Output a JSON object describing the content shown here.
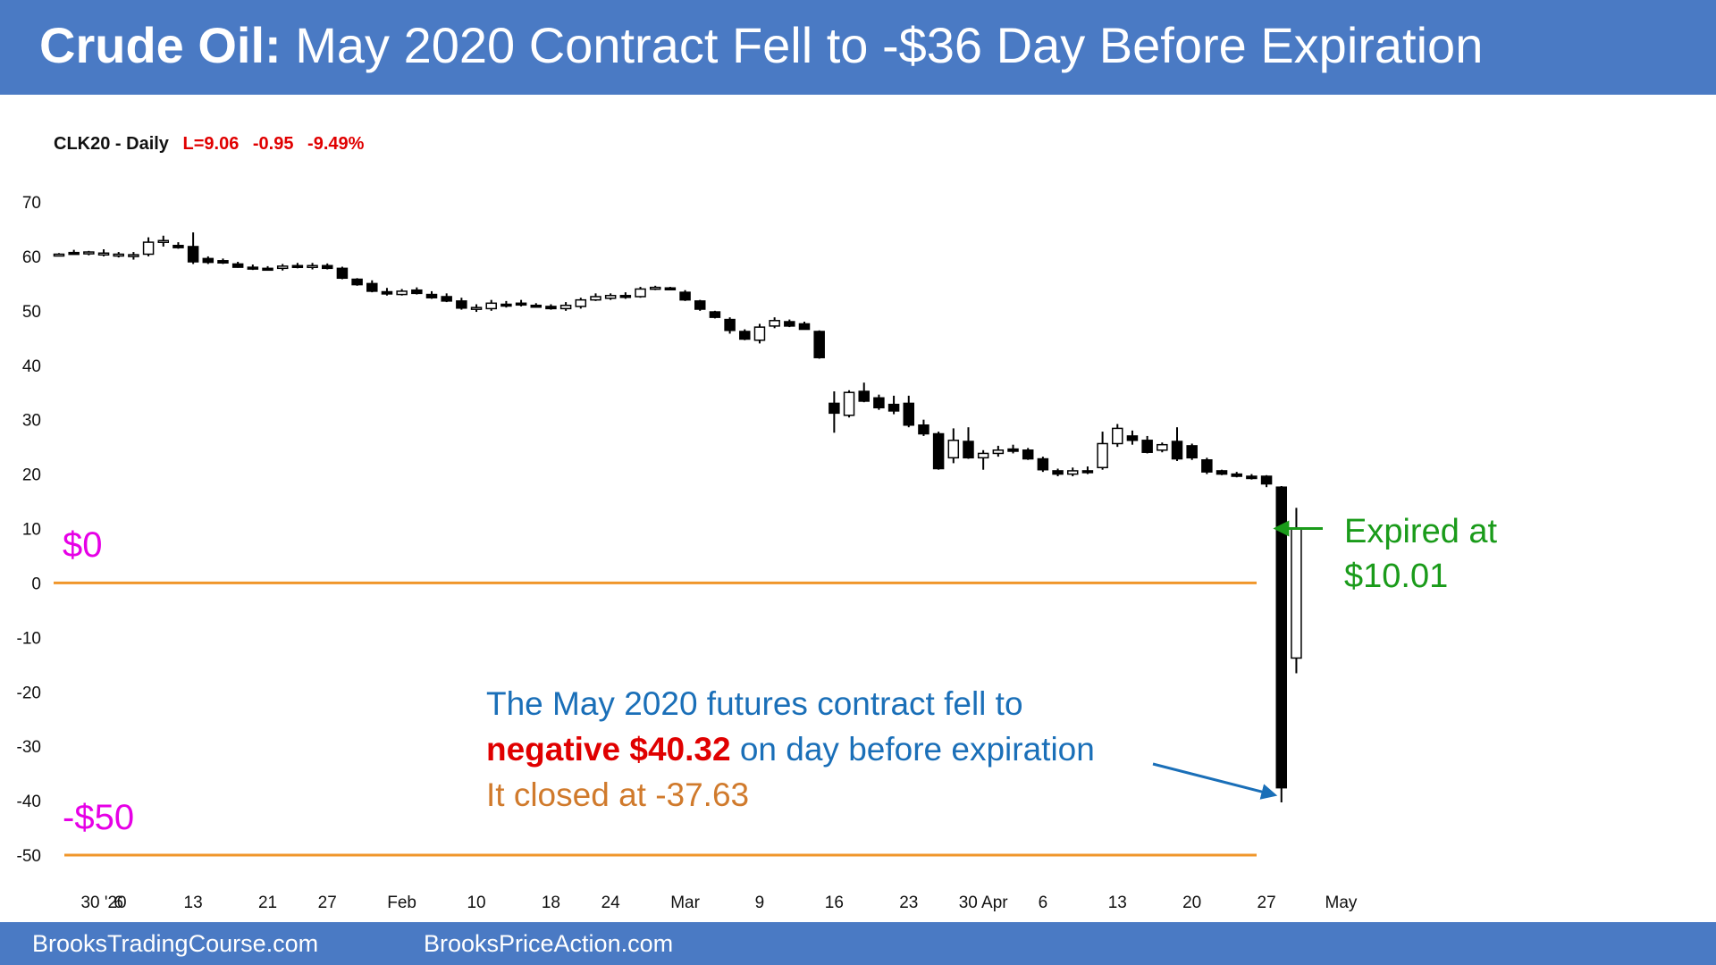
{
  "header": {
    "title_bold": "Crude Oil:",
    "title_rest": "May 2020 Contract Fell to -$36 Day Before Expiration"
  },
  "footer": {
    "link1": "BrooksTradingCourse.com",
    "link2": "BrooksPriceAction.com"
  },
  "colors": {
    "banner": "#4a7ac4",
    "line": "#f0962a",
    "magenta": "#e600e6",
    "green": "#1a9b1a",
    "blue": "#1a6fb8",
    "red": "#e00000",
    "orange": "#d07a2c"
  },
  "chart_data": {
    "type": "candlestick",
    "symbol": "CLK20 - Daily",
    "last": "L=9.06",
    "change": "-0.95",
    "change_pct": "-9.49%",
    "ylim": [
      -50,
      70
    ],
    "yticks": [
      70,
      60,
      50,
      40,
      30,
      20,
      10,
      0,
      -10,
      -20,
      -30,
      -40,
      -50
    ],
    "grid": false,
    "x_tick_labels": [
      {
        "label": "30 '20",
        "index": 3
      },
      {
        "label": "6",
        "index": 4
      },
      {
        "label": "13",
        "index": 9
      },
      {
        "label": "21",
        "index": 14
      },
      {
        "label": "27",
        "index": 18
      },
      {
        "label": "Feb",
        "index": 23
      },
      {
        "label": "10",
        "index": 28
      },
      {
        "label": "18",
        "index": 33
      },
      {
        "label": "24",
        "index": 37
      },
      {
        "label": "Mar",
        "index": 42
      },
      {
        "label": "9",
        "index": 47
      },
      {
        "label": "16",
        "index": 52
      },
      {
        "label": "23",
        "index": 57
      },
      {
        "label": "30 Apr",
        "index": 62
      },
      {
        "label": "6",
        "index": 66
      },
      {
        "label": "13",
        "index": 71
      },
      {
        "label": "20",
        "index": 76
      },
      {
        "label": "27",
        "index": 81
      },
      {
        "label": "May",
        "index": 86
      }
    ],
    "candles": [
      {
        "o": 60.3,
        "h": 60.6,
        "l": 60.0,
        "c": 60.4
      },
      {
        "o": 60.7,
        "h": 61.2,
        "l": 60.4,
        "c": 60.6
      },
      {
        "o": 60.6,
        "h": 61.0,
        "l": 60.2,
        "c": 60.8
      },
      {
        "o": 60.5,
        "h": 61.3,
        "l": 60.0,
        "c": 60.6
      },
      {
        "o": 60.2,
        "h": 60.8,
        "l": 59.8,
        "c": 60.4
      },
      {
        "o": 60.0,
        "h": 60.8,
        "l": 59.4,
        "c": 60.3
      },
      {
        "o": 60.4,
        "h": 63.5,
        "l": 60.0,
        "c": 62.6
      },
      {
        "o": 62.6,
        "h": 63.8,
        "l": 61.8,
        "c": 62.9
      },
      {
        "o": 62.0,
        "h": 62.6,
        "l": 61.4,
        "c": 61.6
      },
      {
        "o": 61.8,
        "h": 64.4,
        "l": 58.6,
        "c": 59.0
      },
      {
        "o": 59.6,
        "h": 60.0,
        "l": 58.6,
        "c": 58.9
      },
      {
        "o": 59.2,
        "h": 59.6,
        "l": 58.6,
        "c": 58.8
      },
      {
        "o": 58.6,
        "h": 59.0,
        "l": 57.9,
        "c": 58.0
      },
      {
        "o": 58.0,
        "h": 58.5,
        "l": 57.5,
        "c": 57.7
      },
      {
        "o": 57.8,
        "h": 58.2,
        "l": 57.4,
        "c": 57.6
      },
      {
        "o": 57.8,
        "h": 58.6,
        "l": 57.4,
        "c": 58.2
      },
      {
        "o": 58.3,
        "h": 58.8,
        "l": 57.8,
        "c": 58.1
      },
      {
        "o": 58.2,
        "h": 58.8,
        "l": 57.6,
        "c": 58.3
      },
      {
        "o": 58.3,
        "h": 58.7,
        "l": 57.6,
        "c": 57.8
      },
      {
        "o": 57.8,
        "h": 58.1,
        "l": 55.8,
        "c": 56.0
      },
      {
        "o": 55.8,
        "h": 56.0,
        "l": 54.6,
        "c": 54.8
      },
      {
        "o": 55.0,
        "h": 55.6,
        "l": 53.4,
        "c": 53.6
      },
      {
        "o": 53.5,
        "h": 54.2,
        "l": 52.8,
        "c": 53.1
      },
      {
        "o": 53.0,
        "h": 54.0,
        "l": 52.8,
        "c": 53.6
      },
      {
        "o": 53.8,
        "h": 54.3,
        "l": 53.0,
        "c": 53.2
      },
      {
        "o": 53.0,
        "h": 53.6,
        "l": 52.2,
        "c": 52.4
      },
      {
        "o": 52.6,
        "h": 53.2,
        "l": 51.6,
        "c": 51.8
      },
      {
        "o": 51.8,
        "h": 52.4,
        "l": 50.2,
        "c": 50.5
      },
      {
        "o": 50.4,
        "h": 51.2,
        "l": 49.8,
        "c": 50.6
      },
      {
        "o": 50.4,
        "h": 52.0,
        "l": 50.0,
        "c": 51.4
      },
      {
        "o": 51.2,
        "h": 51.8,
        "l": 50.6,
        "c": 51.0
      },
      {
        "o": 51.4,
        "h": 52.0,
        "l": 50.8,
        "c": 51.3
      },
      {
        "o": 51.0,
        "h": 51.4,
        "l": 50.6,
        "c": 50.8
      },
      {
        "o": 50.8,
        "h": 51.2,
        "l": 50.2,
        "c": 50.4
      },
      {
        "o": 50.4,
        "h": 51.6,
        "l": 50.0,
        "c": 51.0
      },
      {
        "o": 50.8,
        "h": 52.4,
        "l": 50.4,
        "c": 52.0
      },
      {
        "o": 52.0,
        "h": 53.2,
        "l": 51.8,
        "c": 52.6
      },
      {
        "o": 52.3,
        "h": 53.2,
        "l": 52.0,
        "c": 52.8
      },
      {
        "o": 52.8,
        "h": 53.4,
        "l": 52.2,
        "c": 52.8
      },
      {
        "o": 52.6,
        "h": 54.4,
        "l": 52.4,
        "c": 54.0
      },
      {
        "o": 54.2,
        "h": 54.6,
        "l": 53.8,
        "c": 54.3
      },
      {
        "o": 54.2,
        "h": 54.4,
        "l": 53.8,
        "c": 53.9
      },
      {
        "o": 53.4,
        "h": 53.8,
        "l": 51.8,
        "c": 52.0
      },
      {
        "o": 51.8,
        "h": 52.0,
        "l": 50.0,
        "c": 50.3
      },
      {
        "o": 49.8,
        "h": 50.0,
        "l": 48.6,
        "c": 48.8
      },
      {
        "o": 48.4,
        "h": 48.8,
        "l": 45.8,
        "c": 46.4
      },
      {
        "o": 46.2,
        "h": 46.6,
        "l": 44.6,
        "c": 44.8
      },
      {
        "o": 44.6,
        "h": 47.6,
        "l": 44.0,
        "c": 47.0
      },
      {
        "o": 47.2,
        "h": 48.8,
        "l": 46.8,
        "c": 48.2
      },
      {
        "o": 48.0,
        "h": 48.4,
        "l": 47.0,
        "c": 47.2
      },
      {
        "o": 47.6,
        "h": 48.0,
        "l": 46.6,
        "c": 46.6
      },
      {
        "o": 46.2,
        "h": 46.4,
        "l": 41.2,
        "c": 41.4
      },
      {
        "o": 33.0,
        "h": 35.2,
        "l": 27.6,
        "c": 31.2
      },
      {
        "o": 30.8,
        "h": 35.4,
        "l": 30.4,
        "c": 35.0
      },
      {
        "o": 35.2,
        "h": 36.8,
        "l": 33.2,
        "c": 33.4
      },
      {
        "o": 34.0,
        "h": 34.6,
        "l": 31.8,
        "c": 32.2
      },
      {
        "o": 32.8,
        "h": 34.4,
        "l": 31.0,
        "c": 31.6
      },
      {
        "o": 33.0,
        "h": 34.4,
        "l": 28.6,
        "c": 29.0
      },
      {
        "o": 29.0,
        "h": 30.0,
        "l": 27.0,
        "c": 27.4
      },
      {
        "o": 27.4,
        "h": 27.8,
        "l": 20.8,
        "c": 21.0
      },
      {
        "o": 23.0,
        "h": 28.4,
        "l": 22.0,
        "c": 26.2
      },
      {
        "o": 26.0,
        "h": 28.6,
        "l": 22.8,
        "c": 23.0
      },
      {
        "o": 23.0,
        "h": 24.4,
        "l": 20.8,
        "c": 23.8
      },
      {
        "o": 23.8,
        "h": 25.2,
        "l": 23.2,
        "c": 24.4
      },
      {
        "o": 24.6,
        "h": 25.4,
        "l": 23.8,
        "c": 24.2
      },
      {
        "o": 24.4,
        "h": 24.8,
        "l": 22.6,
        "c": 22.8
      },
      {
        "o": 22.8,
        "h": 23.2,
        "l": 20.4,
        "c": 20.8
      },
      {
        "o": 20.6,
        "h": 21.0,
        "l": 19.6,
        "c": 20.0
      },
      {
        "o": 20.0,
        "h": 21.2,
        "l": 19.6,
        "c": 20.6
      },
      {
        "o": 20.6,
        "h": 21.4,
        "l": 20.0,
        "c": 20.4
      },
      {
        "o": 21.2,
        "h": 27.8,
        "l": 20.8,
        "c": 25.6
      },
      {
        "o": 25.6,
        "h": 29.2,
        "l": 25.0,
        "c": 28.4
      },
      {
        "o": 27.0,
        "h": 28.0,
        "l": 25.4,
        "c": 26.2
      },
      {
        "o": 26.2,
        "h": 27.0,
        "l": 23.8,
        "c": 24.0
      },
      {
        "o": 24.4,
        "h": 25.8,
        "l": 24.0,
        "c": 25.4
      },
      {
        "o": 26.0,
        "h": 28.6,
        "l": 22.4,
        "c": 22.8
      },
      {
        "o": 25.2,
        "h": 25.6,
        "l": 22.6,
        "c": 23.0
      },
      {
        "o": 22.6,
        "h": 23.0,
        "l": 20.0,
        "c": 20.4
      },
      {
        "o": 20.6,
        "h": 20.8,
        "l": 19.8,
        "c": 20.0
      },
      {
        "o": 20.0,
        "h": 20.4,
        "l": 19.4,
        "c": 19.6
      },
      {
        "o": 19.6,
        "h": 20.0,
        "l": 19.0,
        "c": 19.2
      },
      {
        "o": 19.6,
        "h": 19.8,
        "l": 17.6,
        "c": 18.2
      },
      {
        "o": 17.6,
        "h": 17.8,
        "l": -40.32,
        "c": -37.63
      },
      {
        "o": -13.8,
        "h": 13.8,
        "l": -16.6,
        "c": 10.01
      }
    ],
    "hlines": [
      {
        "value": 0,
        "label": "$0"
      },
      {
        "value": -50,
        "label": "-$50"
      }
    ],
    "annotations": {
      "expired_line1": "Expired at",
      "expired_line2": "$10.01",
      "main_line1": "The May 2020 futures contract fell to",
      "main_neg": "negative $40.32",
      "main_line2_rest": " on day before expiration",
      "main_line3": "It closed at -37.63"
    }
  }
}
